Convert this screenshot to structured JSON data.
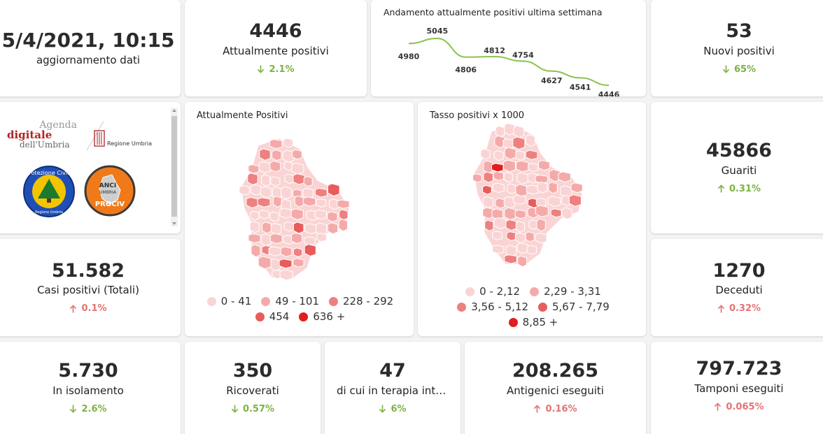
{
  "header": {
    "timestamp": "5/4/2021, 10:15",
    "timestamp_label": "aggiornamento dati"
  },
  "kpis": {
    "attualmente_positivi": {
      "value": "4446",
      "label": "Attualmente positivi",
      "trend": "2.1%",
      "direction": "down"
    },
    "nuovi_positivi": {
      "value": "53",
      "label": "Nuovi positivi",
      "trend": "65%",
      "direction": "down"
    },
    "guariti": {
      "value": "45866",
      "label": "Guariti",
      "trend": "0.31%",
      "direction": "up-good"
    },
    "casi_totali": {
      "value": "51.582",
      "label": "Casi positivi (Totali)",
      "trend": "0.1%",
      "direction": "up"
    },
    "deceduti": {
      "value": "1270",
      "label": "Deceduti",
      "trend": "0.32%",
      "direction": "up"
    },
    "isolamento": {
      "value": "5.730",
      "label": "In isolamento",
      "trend": "2.6%",
      "direction": "down"
    },
    "ricoverati": {
      "value": "350",
      "label": "Ricoverati",
      "trend": "0.57%",
      "direction": "down"
    },
    "terapia": {
      "value": "47",
      "label": "di cui in terapia inte…",
      "trend": "6%",
      "direction": "down"
    },
    "antigenici": {
      "value": "208.265",
      "label": "Antigenici eseguiti",
      "trend": "0.16%",
      "direction": "up"
    },
    "tamponi": {
      "value": "797.723",
      "label": "Tamponi eseguiti",
      "trend": "0.065%",
      "direction": "up"
    }
  },
  "trend_chart": {
    "title": "Andamento attualmente positivi ultima settimana"
  },
  "chart_data": {
    "type": "line",
    "title": "Andamento attualmente positivi ultima settimana",
    "values": [
      4980,
      5045,
      4806,
      4812,
      4754,
      4627,
      4541,
      4446
    ],
    "labels": [
      "4980",
      "5045",
      "4806",
      "4812",
      "4754",
      "4627",
      "4541",
      "4446"
    ],
    "color": "#8bc34a"
  },
  "logos": {
    "agenda_line1": "Agenda",
    "agenda_line2": "digitale",
    "agenda_line3": "dell'Umbria",
    "regione": "Regione Umbria",
    "protezione": "Protezione Civile",
    "protezione_sub": "Regione Umbria",
    "anci_1": "ANCI",
    "anci_2": "UMBRIA",
    "anci_3": "PROCIV"
  },
  "map1": {
    "title": "Attualmente Positivi",
    "legend": [
      {
        "label": "0 - 41",
        "color": "#fad4d4"
      },
      {
        "label": "49 - 101",
        "color": "#f5aaaa"
      },
      {
        "label": "228 - 292",
        "color": "#ee8080"
      },
      {
        "label": "454",
        "color": "#e85c5c"
      },
      {
        "label": "636 +",
        "color": "#e01e1e"
      }
    ]
  },
  "map2": {
    "title": "Tasso positivi x 1000",
    "legend": [
      {
        "label": "0 - 2,12",
        "color": "#fad4d4"
      },
      {
        "label": "2,29 - 3,31",
        "color": "#f5aaaa"
      },
      {
        "label": "3,56 - 5,12",
        "color": "#ee8080"
      },
      {
        "label": "5,67 - 7,79",
        "color": "#e85c5c"
      },
      {
        "label": "8,85 +",
        "color": "#e01e1e"
      }
    ]
  },
  "colors": {
    "good": "#7cb342",
    "bad": "#e57373"
  }
}
